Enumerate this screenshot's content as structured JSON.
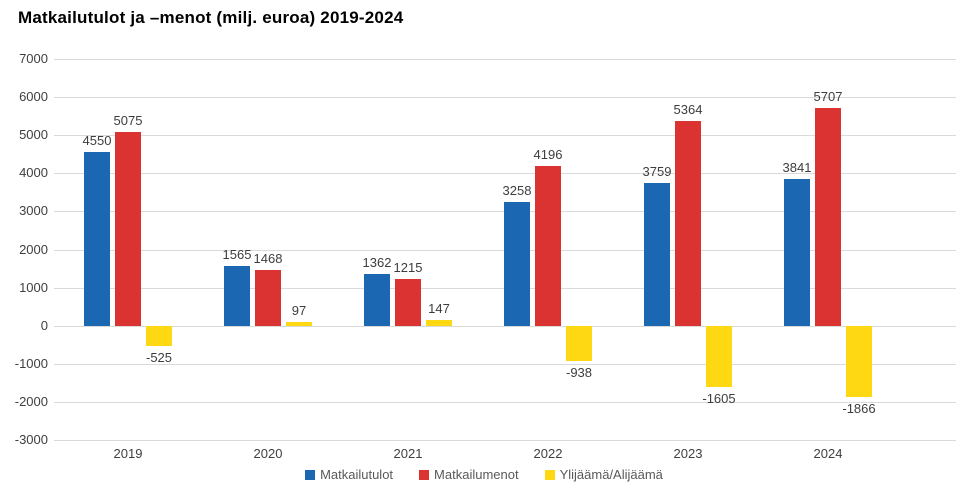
{
  "chart_data": {
    "type": "bar",
    "title": "Matkailutulot ja –menot (milj. euroa) 2019-2024",
    "categories": [
      "2019",
      "2020",
      "2021",
      "2022",
      "2023",
      "2024"
    ],
    "series": [
      {
        "id": "matkailutulot",
        "name": "Matkailutulot",
        "color": "#1B67B2",
        "values": [
          4550,
          1565,
          1362,
          3258,
          3759,
          3841
        ]
      },
      {
        "id": "matkailumenot",
        "name": "Matkailumenot",
        "color": "#DB3332",
        "values": [
          5075,
          1468,
          1215,
          4196,
          5364,
          5707
        ]
      },
      {
        "id": "ylijaama-alijaama",
        "name": "Ylijäämä/Alijäämä",
        "color": "#FFD814",
        "values": [
          -525,
          97,
          147,
          -938,
          -1605,
          -1866
        ]
      }
    ],
    "xlabel": "",
    "ylabel": "",
    "ylim": [
      -3000,
      7000
    ],
    "ytick_step": 1000,
    "ytick_labels": [
      "7000",
      "6000",
      "5000",
      "4000",
      "3000",
      "2000",
      "1000",
      "0",
      "-1000",
      "-2000",
      "-3000"
    ],
    "grid": "horizontal",
    "legend_position": "bottom",
    "value_labels": "shown",
    "colors": {
      "grid": "#DADADA",
      "axis_text": "#404040",
      "value_label_text": "#3D3D3D",
      "legend_text": "#595959",
      "background": "#FFFFFF"
    }
  }
}
